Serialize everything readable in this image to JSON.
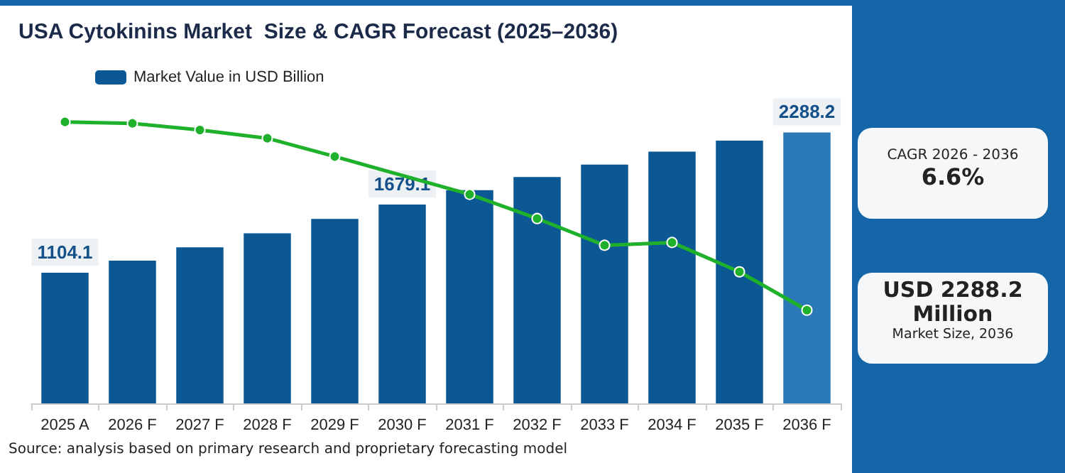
{
  "chart_data": {
    "type": "bar",
    "title": "USA Cytokinins Market  Size & CAGR Forecast (2025–2036)",
    "categories": [
      "2025 A",
      "2026 F",
      "2027 F",
      "2028 F",
      "2029 F",
      "2030 F",
      "2031 F",
      "2032 F",
      "2033 F",
      "2034 F",
      "2035 F",
      "2036 F"
    ],
    "series": [
      {
        "name": "Market Value in USD Billion",
        "colors": [
          "#0b5894",
          "#0b5894",
          "#0b5894",
          "#0b5894",
          "#0b5894",
          "#0b5894",
          "#0b5894",
          "#0b5894",
          "#0b5894",
          "#0b5894",
          "#0b5894",
          "#2a78b5"
        ],
        "values": [
          1104.1,
          1205,
          1318,
          1436,
          1558,
          1679.1,
          1801,
          1911,
          2017,
          2126,
          2219,
          2288.2
        ],
        "value_labels": [
          "1104.1",
          null,
          null,
          null,
          null,
          "1679.1",
          null,
          null,
          null,
          null,
          null,
          "2288.2"
        ]
      },
      {
        "type": "line",
        "color": "#1fb02c",
        "values": [
          2377,
          2365,
          2309,
          2239,
          2085,
          null,
          1765,
          1561,
          1335,
          1359,
          1111,
          787
        ]
      }
    ],
    "marker": "circle",
    "legend": "top left",
    "grid": false,
    "annotations": [
      "Source: analysis based on primary research and proprietary forecasting model",
      "CAGR 2026 - 2036",
      "6.6%",
      "USD 2288.2 Million",
      "Market Size, 2036"
    ]
  }
}
